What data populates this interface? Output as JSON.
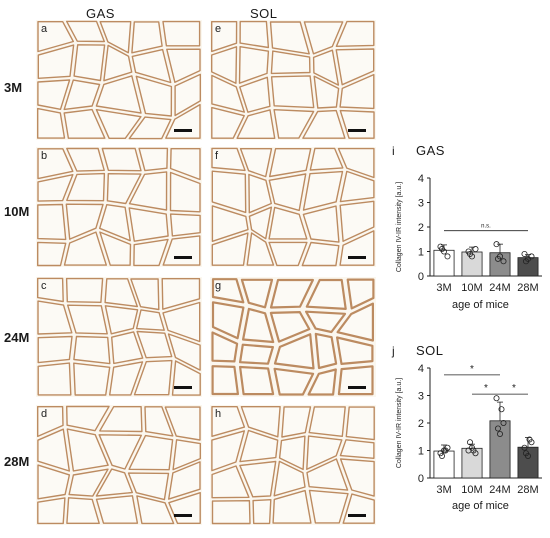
{
  "columns": {
    "gas_header": "GAS",
    "sol_header": "SOL"
  },
  "rows": [
    {
      "label": "3M",
      "gas_letter": "a",
      "sol_letter": "e"
    },
    {
      "label": "10M",
      "gas_letter": "b",
      "sol_letter": "f"
    },
    {
      "label": "24M",
      "gas_letter": "c",
      "sol_letter": "g"
    },
    {
      "label": "28M",
      "gas_letter": "d",
      "sol_letter": "h"
    }
  ],
  "colors": {
    "tissue_bg": "#fbf7ef",
    "fiber_interior": "#fdfbf6",
    "collagen_stain": "#b9865a",
    "scale_bar": "#111111",
    "bar_3M": "#ffffff",
    "bar_10M": "#d9d9d9",
    "bar_24M": "#8c8c8c",
    "bar_28M": "#4d4d4d"
  },
  "chart_data": [
    {
      "panel": "i",
      "type": "bar",
      "title": "GAS",
      "categories": [
        "3M",
        "10M",
        "24M",
        "28M"
      ],
      "values": [
        1.05,
        0.98,
        0.95,
        0.75
      ],
      "errors": [
        0.22,
        0.2,
        0.35,
        0.12
      ],
      "points": [
        [
          1.2,
          1.0,
          0.8,
          1.1
        ],
        [
          1.0,
          0.8,
          1.1,
          0.9
        ],
        [
          1.3,
          0.8,
          0.6,
          0.7
        ],
        [
          0.9,
          0.7,
          0.8,
          0.6
        ]
      ],
      "ylabel": "Collagen IV-IR intensity [a.u.]",
      "xlabel": "age of mice",
      "ylim": [
        0,
        4
      ],
      "yticks": [
        0,
        1,
        2,
        3,
        4
      ],
      "significance": [
        {
          "from": "3M",
          "to": "28M",
          "label": "n.s.",
          "level": 1.85
        }
      ]
    },
    {
      "panel": "j",
      "type": "bar",
      "title": "SOL",
      "categories": [
        "3M",
        "10M",
        "24M",
        "28M"
      ],
      "values": [
        0.98,
        1.08,
        2.08,
        1.12
      ],
      "errors": [
        0.22,
        0.15,
        0.68,
        0.35
      ],
      "points": [
        [
          0.9,
          1.0,
          1.1,
          0.8,
          1.0
        ],
        [
          1.0,
          1.1,
          0.9,
          1.3,
          1.0
        ],
        [
          2.9,
          1.6,
          2.0,
          1.8,
          2.5
        ],
        [
          1.1,
          0.8,
          1.3,
          0.9,
          1.4
        ]
      ],
      "ylabel": "Collagen IV-IR intensity [a.u.]",
      "xlabel": "age of mice",
      "ylim": [
        0,
        4
      ],
      "yticks": [
        0,
        1,
        2,
        3,
        4
      ],
      "significance": [
        {
          "from": "3M",
          "to": "24M",
          "label": "*",
          "level": 3.75
        },
        {
          "from": "10M",
          "to": "24M",
          "label": "*",
          "level": 3.05
        },
        {
          "from": "24M",
          "to": "28M",
          "label": "*",
          "level": 3.05
        }
      ]
    }
  ]
}
